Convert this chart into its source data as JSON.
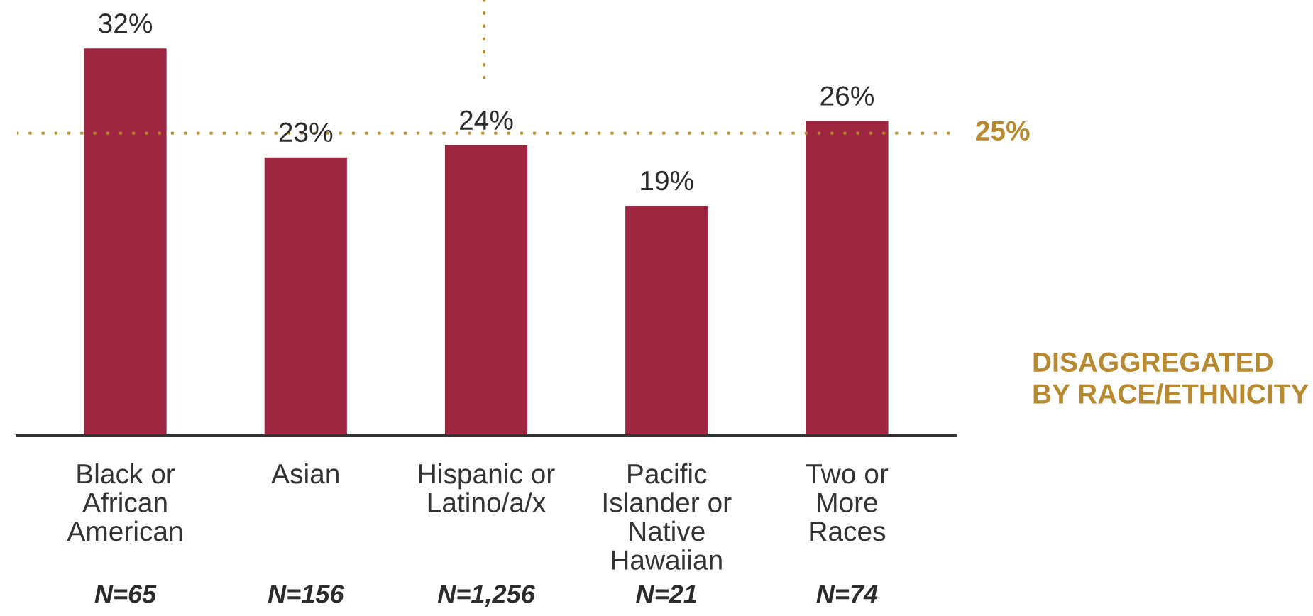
{
  "chart_data": {
    "type": "bar",
    "categories": [
      "Black or\nAfrican\nAmerican",
      "Asian",
      "Hispanic or\nLatino/a/x",
      "Pacific\nIslander or\nNative\nHawaiian",
      "Two or\nMore\nRaces"
    ],
    "values": [
      32,
      23,
      24,
      19,
      26
    ],
    "value_labels": [
      "32%",
      "23%",
      "24%",
      "19%",
      "26%"
    ],
    "color": "#9f2641",
    "tick_labels": "x",
    "ref_lines": [
      {
        "axis": "y",
        "value": 25,
        "label": "25%",
        "color": "#b8892f",
        "line_style": "dotted"
      }
    ],
    "annotations": [
      "N=65",
      "N=156",
      "N=1,256",
      "N=21",
      "N=74",
      "DISAGGREGATED\nBY RACE/ETHNICITY"
    ]
  }
}
